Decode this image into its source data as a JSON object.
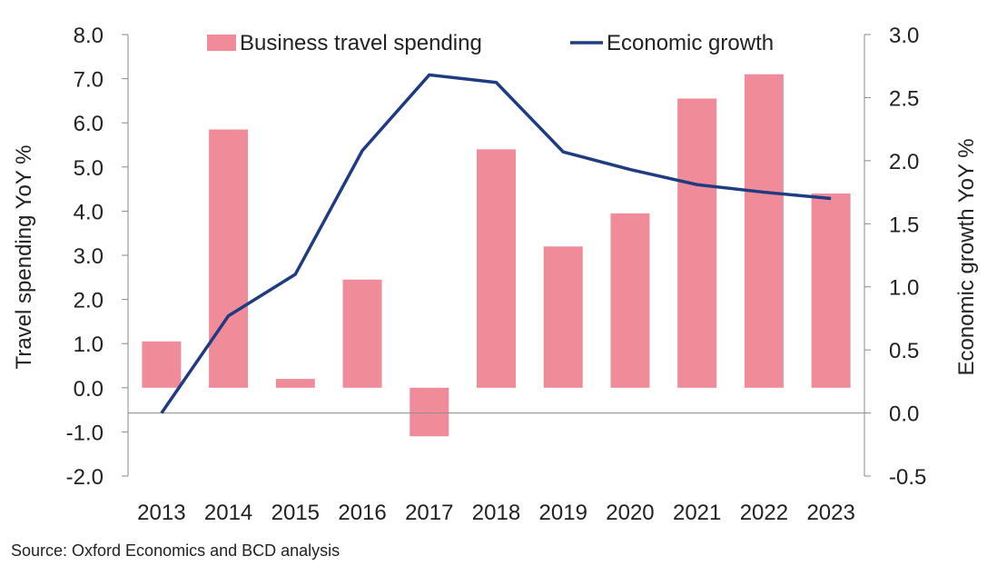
{
  "chart_data": {
    "type": "bar",
    "categories": [
      "2013",
      "2014",
      "2015",
      "2016",
      "2017",
      "2018",
      "2019",
      "2020",
      "2021",
      "2022",
      "2023"
    ],
    "series": [
      {
        "name": "Business travel spending",
        "type": "bar",
        "axis": "left",
        "color": "#f08c99",
        "values": [
          1.05,
          5.85,
          0.2,
          2.45,
          -1.1,
          5.4,
          3.2,
          3.95,
          6.55,
          7.1,
          4.4
        ]
      },
      {
        "name": "Economic growth",
        "type": "line",
        "axis": "right",
        "color": "#1f3b82",
        "values": [
          0.0,
          0.77,
          1.1,
          2.08,
          2.68,
          2.62,
          2.07,
          1.93,
          1.81,
          1.75,
          1.7
        ]
      }
    ],
    "ylabel": "Travel spending YoY %",
    "y2label": "Economic growth YoY %",
    "ylim": [
      -2.0,
      8.0
    ],
    "y2lim": [
      -0.5,
      3.0
    ],
    "yticks": [
      "8.0",
      "7.0",
      "6.0",
      "5.0",
      "4.0",
      "3.0",
      "2.0",
      "1.0",
      "0.0",
      "-1.0",
      "-2.0"
    ],
    "y2ticks": [
      "3.0",
      "2.5",
      "2.0",
      "1.5",
      "1.0",
      "0.5",
      "0.0",
      "-0.5"
    ],
    "legend_position": "top",
    "grid": false
  },
  "source_note": "Source: Oxford Economics and BCD analysis"
}
